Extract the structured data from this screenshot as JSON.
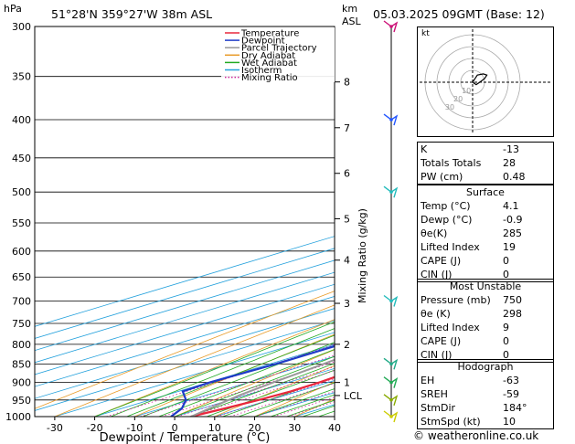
{
  "header": {
    "location": "51°28'N  359°27'W  38m  ASL",
    "datetime": "05.03.2025  09GMT  (Base: 12)",
    "hpa_unit": "hPa",
    "km_unit": "km",
    "asl_unit": "ASL"
  },
  "axes": {
    "xlabel": "Dewpoint / Temperature (°C)",
    "ylabel": "Mixing Ratio (g/kg)",
    "pressure_ticks": [
      300,
      350,
      400,
      450,
      500,
      550,
      600,
      650,
      700,
      750,
      800,
      850,
      900,
      950,
      1000
    ],
    "temp_ticks": [
      -30,
      -20,
      -10,
      0,
      10,
      20,
      30,
      40
    ],
    "km_ticks": [
      {
        "label": "8",
        "p": 356
      },
      {
        "label": "7",
        "p": 410
      },
      {
        "label": "6",
        "p": 472
      },
      {
        "label": "5",
        "p": 543
      },
      {
        "label": "4",
        "p": 617
      },
      {
        "label": "3",
        "p": 705
      },
      {
        "label": "2",
        "p": 800
      },
      {
        "label": "1",
        "p": 900
      },
      {
        "label": "LCL",
        "p": 937
      }
    ],
    "mixing_ratio_labels": [
      "1",
      "2",
      "3",
      "4",
      "5",
      "8",
      "10",
      "15",
      "20",
      "25"
    ]
  },
  "legend": {
    "items": [
      {
        "label": "Temperature",
        "color": "#e8283c",
        "style": "solid"
      },
      {
        "label": "Dewpoint",
        "color": "#1e3cc8",
        "style": "solid"
      },
      {
        "label": "Parcel Trajectory",
        "color": "#999999",
        "style": "solid"
      },
      {
        "label": "Dry Adiabat",
        "color": "#e89b28",
        "style": "solid"
      },
      {
        "label": "Wet Adiabat",
        "color": "#22aa22",
        "style": "solid"
      },
      {
        "label": "Isotherm",
        "color": "#22a0dc",
        "style": "solid"
      },
      {
        "label": "Mixing Ratio",
        "color": "#cc2299",
        "style": "dotted"
      }
    ]
  },
  "chart_data": {
    "type": "line",
    "x_unit": "°C",
    "xlim": [
      -35,
      40
    ],
    "ylim_pressure_hPa": [
      300,
      1000
    ],
    "y_scale": "log",
    "series": [
      {
        "name": "Temperature",
        "color": "#e8283c",
        "points": [
          [
            1000,
            4.1
          ],
          [
            975,
            5.8
          ],
          [
            950,
            7.2
          ],
          [
            925,
            8.0
          ],
          [
            900,
            7.8
          ],
          [
            850,
            5.6
          ],
          [
            800,
            2.6
          ],
          [
            750,
            -0.4
          ],
          [
            700,
            -3.7
          ],
          [
            650,
            -7.5
          ],
          [
            600,
            -11.4
          ],
          [
            550,
            -15.8
          ],
          [
            500,
            -20.8
          ],
          [
            450,
            -26.2
          ],
          [
            400,
            -32.4
          ],
          [
            370,
            -36.0
          ],
          [
            350,
            -37.6
          ],
          [
            330,
            -40.0
          ],
          [
            300,
            -46.0
          ]
        ]
      },
      {
        "name": "Dewpoint",
        "color": "#1e3cc8",
        "points": [
          [
            1000,
            -0.9
          ],
          [
            975,
            -5.0
          ],
          [
            950,
            -11.0
          ],
          [
            925,
            -19.0
          ],
          [
            900,
            -19.6
          ],
          [
            850,
            -18.5
          ],
          [
            800,
            -18.6
          ],
          [
            750,
            -20.0
          ],
          [
            700,
            -21.5
          ],
          [
            675,
            -20.0
          ],
          [
            650,
            -17.2
          ],
          [
            620,
            -17.8
          ],
          [
            600,
            -19.4
          ],
          [
            550,
            -26.0
          ],
          [
            500,
            -33.0
          ],
          [
            450,
            -41.0
          ],
          [
            400,
            -47.5
          ],
          [
            350,
            -54.0
          ],
          [
            300,
            -60.0
          ]
        ]
      },
      {
        "name": "Parcel Trajectory",
        "color": "#999999",
        "points": [
          [
            1000,
            4.1
          ],
          [
            937,
            -1.5
          ],
          [
            900,
            -3.7
          ],
          [
            850,
            -6.6
          ],
          [
            800,
            -9.8
          ],
          [
            750,
            -13.2
          ],
          [
            700,
            -17.0
          ],
          [
            650,
            -21.2
          ],
          [
            600,
            -26.0
          ],
          [
            550,
            -31.2
          ],
          [
            500,
            -37.0
          ],
          [
            450,
            -43.5
          ],
          [
            400,
            -50.8
          ],
          [
            350,
            -59.0
          ],
          [
            300,
            -68.0
          ]
        ]
      }
    ],
    "wind_barbs": [
      {
        "p": 300,
        "color": "#cc1177"
      },
      {
        "p": 400,
        "color": "#2255ff"
      },
      {
        "p": 500,
        "color": "#22bbbb"
      },
      {
        "p": 700,
        "color": "#22bbbb"
      },
      {
        "p": 850,
        "color": "#22aa88"
      },
      {
        "p": 900,
        "color": "#22aa55"
      },
      {
        "p": 950,
        "color": "#88aa00"
      },
      {
        "p": 1000,
        "color": "#cccc00"
      }
    ],
    "hodograph": {
      "unit_label": "kt",
      "ring_labels": [
        "10",
        "20",
        "30"
      ],
      "trace": [
        [
          0,
          0
        ],
        [
          -2,
          -3
        ],
        [
          -4,
          -6
        ],
        [
          -9,
          -7
        ],
        [
          -12,
          -6
        ],
        [
          -10,
          -3
        ],
        [
          -6,
          0
        ],
        [
          -3,
          2
        ],
        [
          0,
          0
        ]
      ]
    }
  },
  "indices": [
    {
      "label": "K",
      "value": "-13"
    },
    {
      "label": "Totals Totals",
      "value": "28"
    },
    {
      "label": "PW (cm)",
      "value": "0.48"
    }
  ],
  "surface": {
    "header": "Surface",
    "rows": [
      {
        "label": "Temp (°C)",
        "value": "4.1"
      },
      {
        "label": "Dewp (°C)",
        "value": "-0.9"
      },
      {
        "label": "θe(K)",
        "value": "285"
      },
      {
        "label": "Lifted Index",
        "value": "19"
      },
      {
        "label": "CAPE (J)",
        "value": "0"
      },
      {
        "label": "CIN (J)",
        "value": "0"
      }
    ]
  },
  "most_unstable": {
    "header": "Most Unstable",
    "rows": [
      {
        "label": "Pressure (mb)",
        "value": "750"
      },
      {
        "label": "θe (K)",
        "value": "298"
      },
      {
        "label": "Lifted Index",
        "value": "9"
      },
      {
        "label": "CAPE (J)",
        "value": "0"
      },
      {
        "label": "CIN (J)",
        "value": "0"
      }
    ]
  },
  "hodograph_table": {
    "header": "Hodograph",
    "rows": [
      {
        "label": "EH",
        "value": "-63"
      },
      {
        "label": "SREH",
        "value": "-59"
      },
      {
        "label": "StmDir",
        "value": "184°"
      },
      {
        "label": "StmSpd (kt)",
        "value": "10"
      }
    ]
  },
  "credit": "© weatheronline.co.uk"
}
